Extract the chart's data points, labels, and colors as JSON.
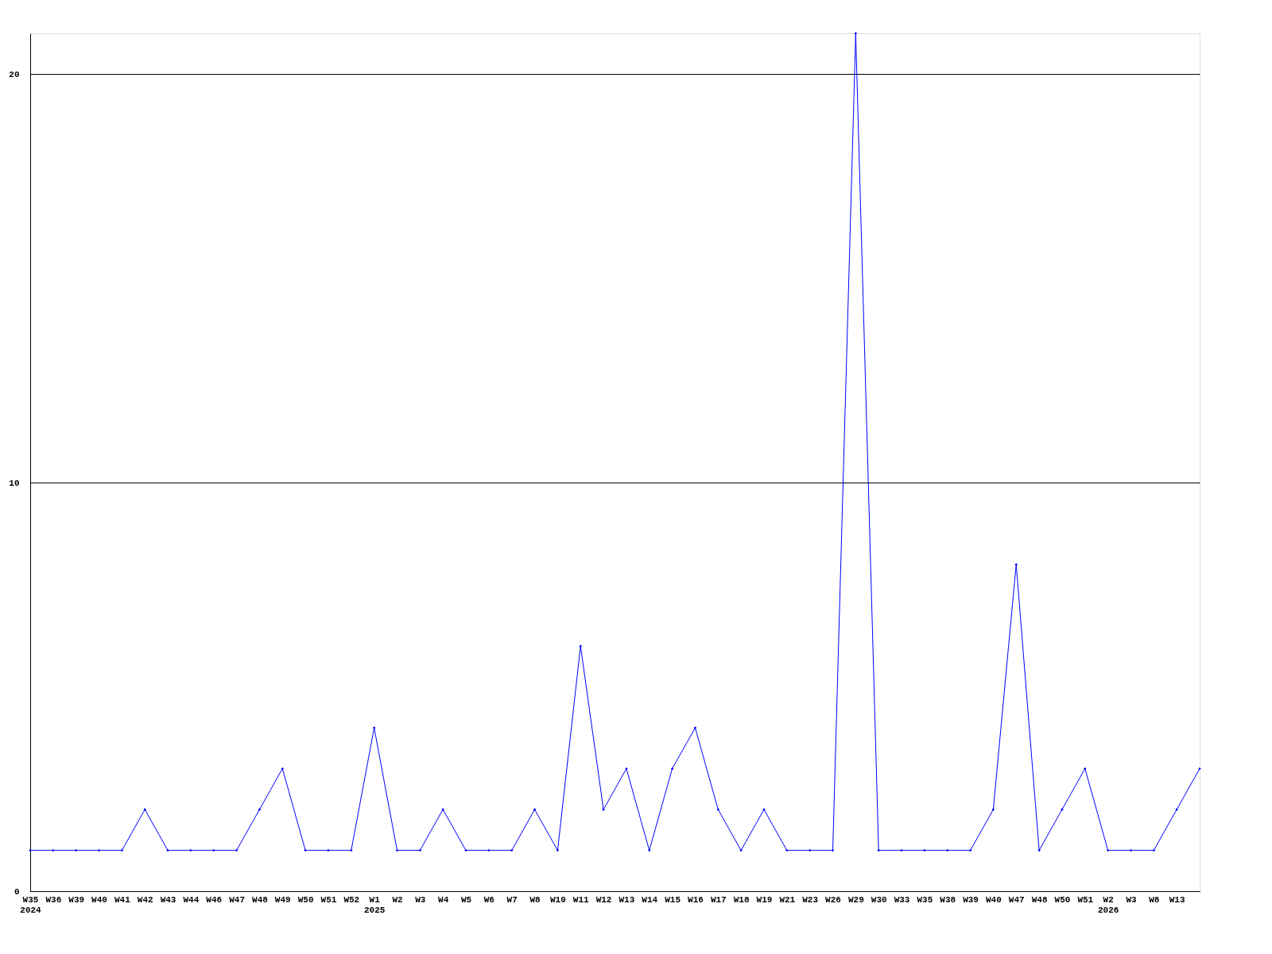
{
  "chart_data": {
    "type": "line",
    "categories": [
      "W35\n2024",
      "W36",
      "W39",
      "W40",
      "W41",
      "W42",
      "W43",
      "W44",
      "W46",
      "W47",
      "W48",
      "W49",
      "W50",
      "W51",
      "W52",
      "W1\n2025",
      "W2",
      "W3",
      "W4",
      "W5",
      "W6",
      "W7",
      "W8",
      "W10",
      "W11",
      "W12",
      "W13",
      "W14",
      "W15",
      "W16",
      "W17",
      "W18",
      "W19",
      "W21",
      "W23",
      "W26",
      "W29",
      "W30",
      "W33",
      "W35",
      "W38",
      "W39",
      "W40",
      "W47",
      "W48",
      "W50",
      "W51",
      "W2\n2026",
      "W3",
      "W8",
      "W13",
      null
    ],
    "series": [
      {
        "color": "#0000ff",
        "values": [
          1,
          1,
          1,
          1,
          1,
          2,
          1,
          1,
          1,
          1,
          2,
          3,
          1,
          1,
          1,
          4,
          1,
          1,
          2,
          1,
          1,
          1,
          2,
          1,
          6,
          2,
          3,
          1,
          3,
          4,
          2,
          1,
          2,
          1,
          1,
          1,
          21,
          1,
          1,
          1,
          1,
          1,
          2,
          8,
          1,
          2,
          3,
          1,
          1,
          1,
          2,
          3
        ]
      }
    ],
    "ylim": [
      0,
      21
    ],
    "yticks": [
      0,
      10,
      20
    ],
    "grid": "y",
    "marker": "diamond",
    "line_style": "solid"
  }
}
